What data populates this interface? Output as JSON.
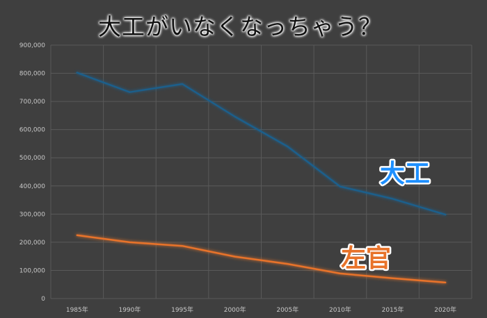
{
  "title": "大工がいなくなっちゃう？",
  "colors": {
    "background": "#3f3f3f",
    "grid": "#5a5a5a",
    "daiku": "#1f5f8b",
    "daiku_label": "#1e90ff",
    "sakan": "#e8732a"
  },
  "chart_data": {
    "type": "line",
    "categories": [
      "1985年",
      "1990年",
      "1995年",
      "2000年",
      "2005年",
      "2010年",
      "2015年",
      "2020年"
    ],
    "series": [
      {
        "name": "大工",
        "values": [
          802000,
          733000,
          762000,
          646000,
          540000,
          398000,
          354000,
          298000
        ]
      },
      {
        "name": "左官",
        "values": [
          225000,
          200000,
          187000,
          149000,
          123000,
          89000,
          72000,
          57000
        ]
      }
    ],
    "y_ticks": [
      "0",
      "100,000",
      "200,000",
      "300,000",
      "400,000",
      "500,000",
      "600,000",
      "700,000",
      "800,000",
      "900,000"
    ],
    "ylim": [
      0,
      900000
    ],
    "grid": true,
    "legend": "none"
  }
}
